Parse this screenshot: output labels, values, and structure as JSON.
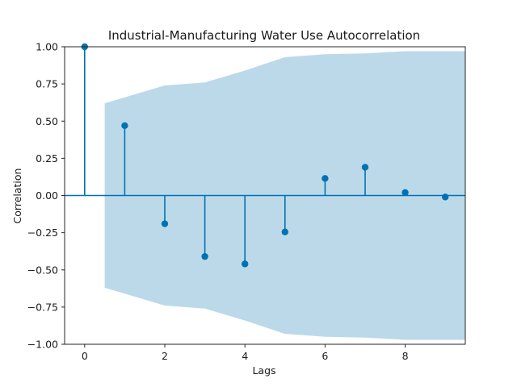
{
  "chart_data": {
    "type": "stem",
    "title": "Industrial-Manufacturing Water Use Autocorrelation",
    "xlabel": "Lags",
    "ylabel": "Correlation",
    "xlim": [
      -0.5,
      9.5
    ],
    "ylim": [
      -1.0,
      1.0
    ],
    "x_ticks": [
      0,
      2,
      4,
      6,
      8
    ],
    "y_ticks": [
      1.0,
      0.75,
      0.5,
      0.25,
      0.0,
      -0.25,
      -0.5,
      -0.75,
      -1.0
    ],
    "x_tick_labels": [
      "0",
      "2",
      "4",
      "6",
      "8"
    ],
    "y_tick_labels": [
      "1.00",
      "0.75",
      "0.50",
      "0.25",
      "0.00",
      "−0.25",
      "−0.50",
      "−0.75",
      "−1.00"
    ],
    "lags": [
      0,
      1,
      2,
      3,
      4,
      5,
      6,
      7,
      8,
      9
    ],
    "values": [
      1.0,
      0.47,
      -0.19,
      -0.41,
      -0.46,
      -0.245,
      0.115,
      0.19,
      0.02,
      -0.01
    ],
    "confidence_band": {
      "x": [
        0.5,
        1,
        2,
        3,
        4,
        5,
        6,
        7,
        8,
        9,
        9.5
      ],
      "upper": [
        0.62,
        0.66,
        0.74,
        0.76,
        0.84,
        0.93,
        0.95,
        0.955,
        0.97,
        0.97,
        0.97
      ]
    },
    "grid": false,
    "legend": "none",
    "colors": {
      "stem": "#0072B2",
      "band": "#bcd9ea",
      "zero_line": "#0072B2"
    }
  }
}
